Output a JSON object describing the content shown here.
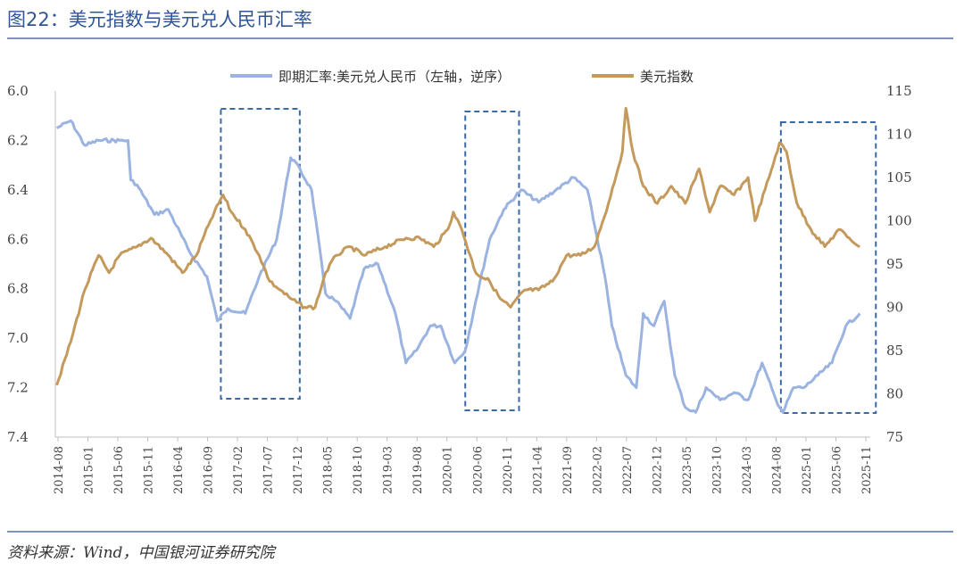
{
  "figure_title": "图22：美元指数与美元兑人民币汇率",
  "source": "资料来源：Wind，中国银河证券研究院",
  "colors": {
    "cny": "#9BB3E0",
    "dxy": "#C49A5C",
    "box": "#3A6AA6",
    "axis": "#bfbfbf",
    "title": "#2F5597"
  },
  "chart_data": {
    "type": "line",
    "legend": [
      "即期汇率:美元兑人民币（左轴，逆序）",
      "美元指数"
    ],
    "x_tick_labels": [
      "2014-08",
      "2015-01",
      "2015-06",
      "2015-11",
      "2016-04",
      "2016-09",
      "2017-02",
      "2017-07",
      "2017-12",
      "2018-05",
      "2018-10",
      "2019-03",
      "2019-08",
      "2020-01",
      "2020-06",
      "2020-11",
      "2021-04",
      "2021-09",
      "2022-02",
      "2022-07",
      "2022-12",
      "2023-05",
      "2023-10",
      "2024-03",
      "2024-08",
      "2025-01",
      "2025-06",
      "2025-11"
    ],
    "left_axis": {
      "ticks": [
        "6.0",
        "6.2",
        "6.4",
        "6.6",
        "6.8",
        "7.0",
        "7.2",
        "7.4"
      ],
      "min": 6.0,
      "max": 7.4,
      "reversed": true
    },
    "right_axis": {
      "ticks": [
        "115",
        "110",
        "105",
        "100",
        "95",
        "90",
        "85",
        "80",
        "75"
      ],
      "min": 75,
      "max": 115
    },
    "series": [
      {
        "name": "即期汇率:美元兑人民币（左轴，逆序）",
        "axis": "left",
        "x": [
          2014.6,
          2014.8,
          2015.0,
          2015.2,
          2015.5,
          2015.62,
          2015.66,
          2015.75,
          2016.0,
          2016.2,
          2016.5,
          2016.75,
          2016.9,
          2017.05,
          2017.3,
          2017.5,
          2017.75,
          2017.95,
          2018.0,
          2018.25,
          2018.45,
          2018.6,
          2018.8,
          2019.0,
          2019.2,
          2019.45,
          2019.6,
          2019.75,
          2019.95,
          2020.1,
          2020.3,
          2020.45,
          2020.6,
          2020.8,
          2021.0,
          2021.25,
          2021.5,
          2021.75,
          2022.0,
          2022.2,
          2022.45,
          2022.55,
          2022.75,
          2022.9,
          2023.0,
          2023.15,
          2023.3,
          2023.45,
          2023.6,
          2023.75,
          2023.9,
          2024.1,
          2024.3,
          2024.5,
          2024.7,
          2024.9,
          2025.0,
          2025.15,
          2025.3,
          2025.5,
          2025.7,
          2025.9,
          2026.1
        ],
        "values": [
          6.15,
          6.12,
          6.22,
          6.2,
          6.2,
          6.2,
          6.36,
          6.38,
          6.5,
          6.48,
          6.65,
          6.75,
          6.93,
          6.88,
          6.9,
          6.75,
          6.6,
          6.27,
          6.28,
          6.4,
          6.82,
          6.85,
          6.92,
          6.72,
          6.7,
          6.9,
          7.1,
          7.05,
          6.95,
          6.95,
          7.1,
          7.05,
          6.85,
          6.6,
          6.48,
          6.4,
          6.45,
          6.4,
          6.35,
          6.4,
          6.75,
          6.95,
          7.15,
          7.2,
          6.9,
          6.95,
          6.85,
          7.15,
          7.28,
          7.3,
          7.2,
          7.25,
          7.22,
          7.25,
          7.1,
          7.25,
          7.3,
          7.2,
          7.2,
          7.15,
          7.1,
          6.95,
          6.9
        ]
      },
      {
        "name": "美元指数",
        "axis": "right",
        "x": [
          2014.6,
          2014.8,
          2015.0,
          2015.2,
          2015.35,
          2015.5,
          2015.75,
          2015.95,
          2016.2,
          2016.4,
          2016.6,
          2016.8,
          2016.98,
          2017.1,
          2017.3,
          2017.5,
          2017.65,
          2017.8,
          2017.95,
          2018.15,
          2018.3,
          2018.45,
          2018.6,
          2018.8,
          2019.0,
          2019.3,
          2019.6,
          2019.8,
          2020.0,
          2020.2,
          2020.28,
          2020.4,
          2020.6,
          2020.8,
          2020.95,
          2021.1,
          2021.3,
          2021.5,
          2021.7,
          2021.9,
          2022.1,
          2022.3,
          2022.5,
          2022.7,
          2022.75,
          2022.85,
          2023.0,
          2023.2,
          2023.4,
          2023.6,
          2023.8,
          2023.95,
          2024.1,
          2024.3,
          2024.5,
          2024.6,
          2024.8,
          2024.95,
          2025.05,
          2025.2,
          2025.4,
          2025.6,
          2025.8,
          2025.95,
          2026.1
        ],
        "values": [
          81,
          86,
          92,
          96,
          94,
          96,
          97,
          98,
          96,
          94,
          96,
          100,
          103,
          101,
          99,
          96,
          93,
          92,
          91,
          90,
          90,
          94,
          96,
          97,
          96,
          97,
          98,
          98,
          97,
          99,
          101,
          99,
          94,
          93,
          91,
          90,
          92,
          92,
          93,
          96,
          96,
          97,
          102,
          108,
          113,
          108,
          104,
          102,
          104,
          102,
          106,
          101,
          104,
          103,
          105,
          100,
          105,
          109,
          108,
          102,
          99,
          97,
          99,
          98,
          97
        ]
      }
    ],
    "highlight_boxes": [
      {
        "x_start": 2016.95,
        "x_end": 2018.08
      },
      {
        "x_start": 2020.45,
        "x_end": 2021.22
      },
      {
        "x_start": 2024.97,
        "x_end": 2026.33
      }
    ]
  }
}
